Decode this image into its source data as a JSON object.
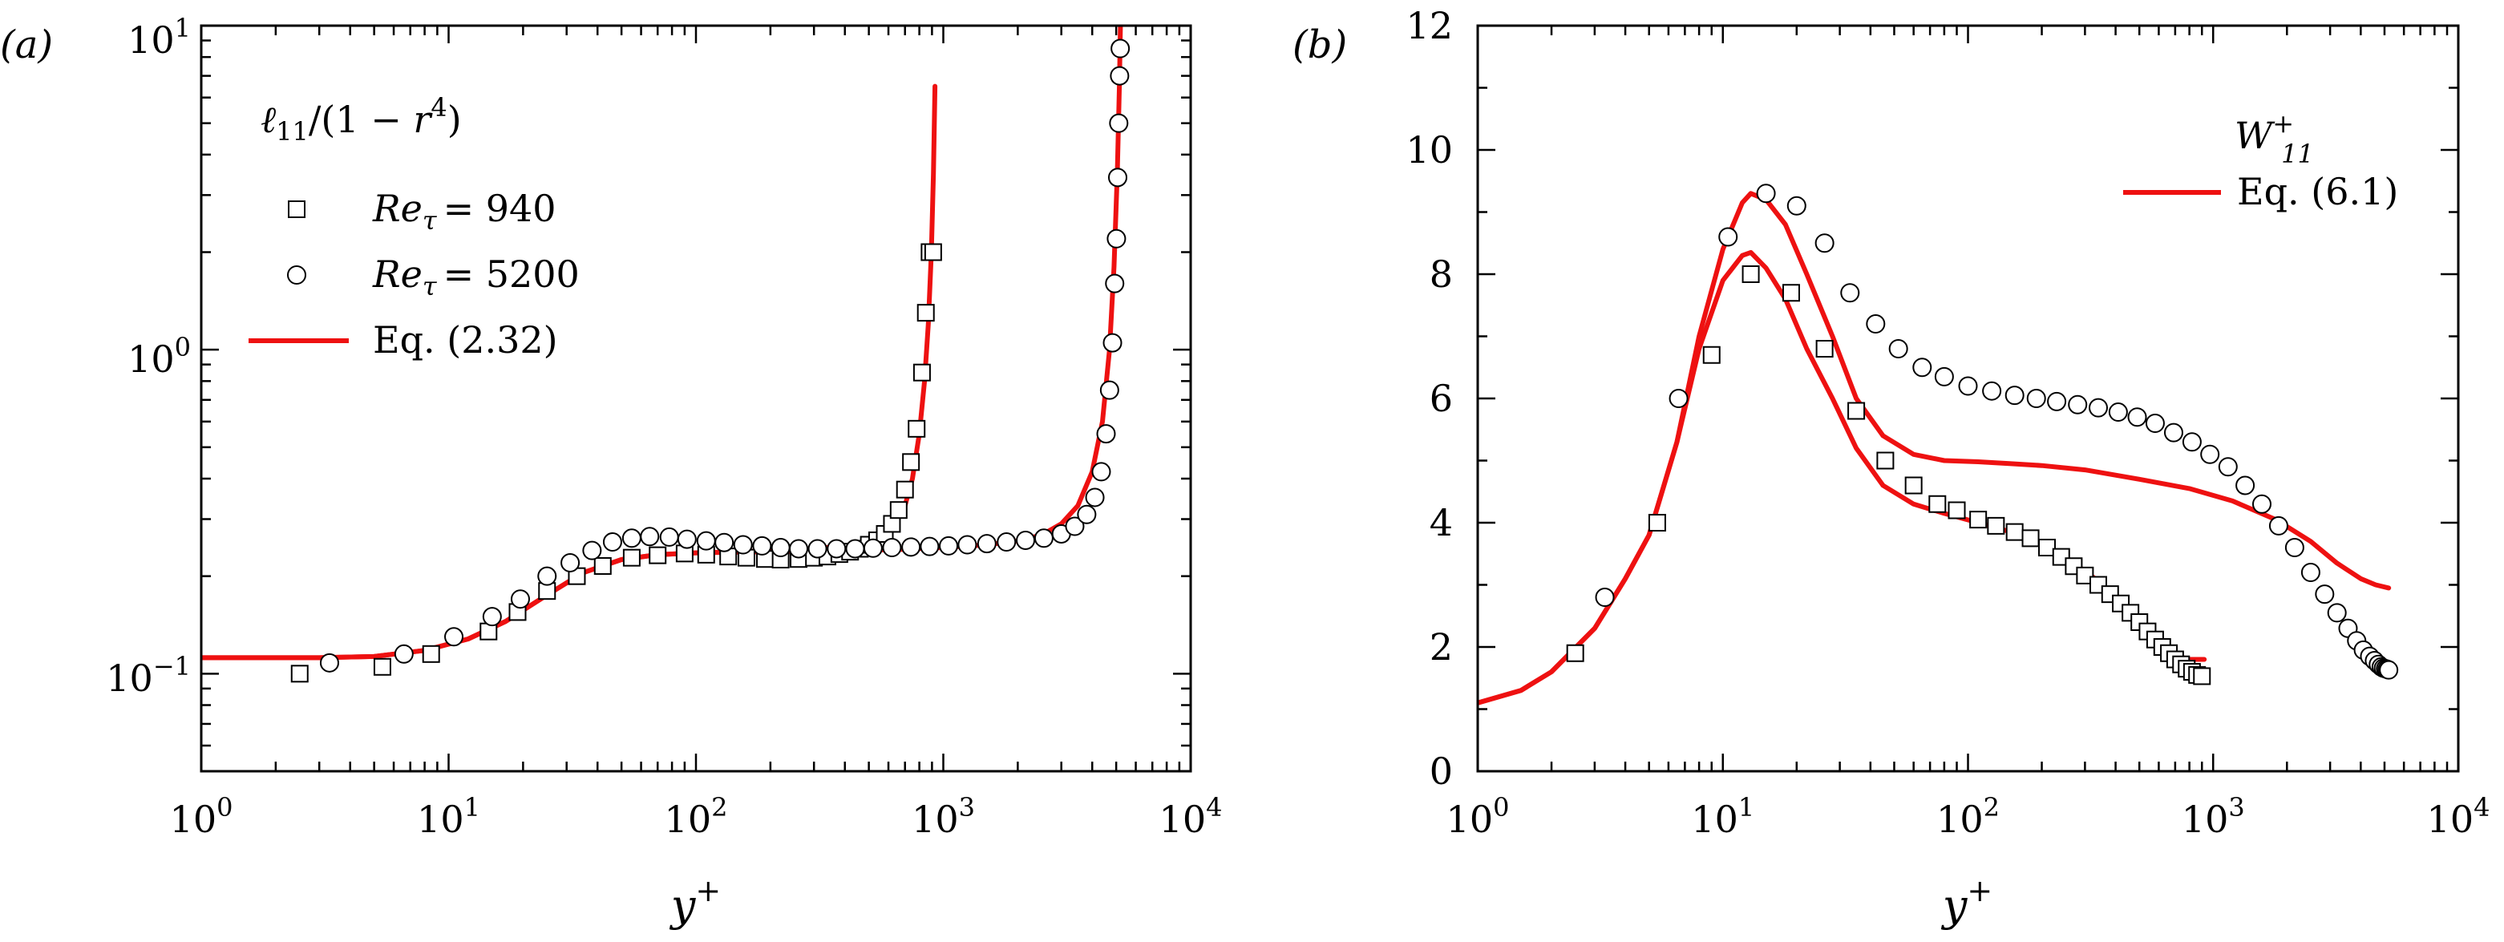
{
  "chart_data": [
    {
      "type": "scatter",
      "panel_label": "(a)",
      "title": "",
      "xlabel": "y+",
      "ylabel": "",
      "xscale": "log",
      "yscale": "log",
      "xlim": [
        1,
        10000
      ],
      "ylim": [
        0.05,
        10
      ],
      "xticks": [
        {
          "base": "10",
          "exp": "0",
          "value": 1
        },
        {
          "base": "10",
          "exp": "1",
          "value": 10
        },
        {
          "base": "10",
          "exp": "2",
          "value": 100
        },
        {
          "base": "10",
          "exp": "3",
          "value": 1000
        },
        {
          "base": "10",
          "exp": "4",
          "value": 10000
        }
      ],
      "yticks": [
        {
          "base": "10",
          "exp": "−1",
          "value": 0.1
        },
        {
          "base": "10",
          "exp": "0",
          "value": 1
        },
        {
          "base": "10",
          "exp": "1",
          "value": 10
        }
      ],
      "legend": {
        "placement": "top-left",
        "heading": "ℓ11/(1 − r4)",
        "heading_ell": "ℓ",
        "heading_sub": "11",
        "heading_mid": "/(1 − ",
        "heading_r": "r",
        "heading_sup": "4",
        "heading_end": ")",
        "entries": [
          {
            "label": "Reτ = 940",
            "re": "Re",
            "sub": "τ",
            "eq": "= 940",
            "marker": "square"
          },
          {
            "label": "Reτ = 5200",
            "re": "Re",
            "sub": "τ",
            "eq": "= 5200",
            "marker": "circle"
          },
          {
            "label": "Eq. (2.32)",
            "marker": "line"
          }
        ]
      },
      "series": [
        {
          "name": "Reτ = 940",
          "marker": "square",
          "x": [
            2.5,
            5.4,
            8.5,
            14.5,
            19,
            25,
            33,
            42,
            55,
            70,
            90,
            110,
            135,
            160,
            190,
            220,
            260,
            300,
            340,
            380,
            420,
            460,
            500,
            540,
            580,
            620,
            660,
            700,
            740,
            780,
            820,
            850,
            880,
            910
          ],
          "y": [
            0.1,
            0.105,
            0.115,
            0.135,
            0.155,
            0.18,
            0.2,
            0.215,
            0.228,
            0.232,
            0.235,
            0.233,
            0.23,
            0.228,
            0.226,
            0.225,
            0.226,
            0.228,
            0.23,
            0.234,
            0.238,
            0.243,
            0.25,
            0.258,
            0.27,
            0.29,
            0.32,
            0.37,
            0.45,
            0.57,
            0.85,
            1.3,
            2.0,
            2.0
          ]
        },
        {
          "name": "Reτ = 5200",
          "marker": "circle",
          "x": [
            3.3,
            6.6,
            10.5,
            15,
            19.5,
            25,
            31,
            38,
            46,
            55,
            65,
            78,
            92,
            110,
            130,
            155,
            185,
            220,
            260,
            310,
            370,
            440,
            520,
            620,
            740,
            880,
            1050,
            1250,
            1500,
            1800,
            2150,
            2550,
            3000,
            3400,
            3800,
            4100,
            4350,
            4550,
            4700,
            4830,
            4930,
            5010,
            5070,
            5120,
            5160,
            5190
          ],
          "y": [
            0.108,
            0.115,
            0.13,
            0.15,
            0.17,
            0.2,
            0.22,
            0.24,
            0.255,
            0.262,
            0.265,
            0.264,
            0.26,
            0.257,
            0.254,
            0.25,
            0.248,
            0.245,
            0.243,
            0.243,
            0.243,
            0.243,
            0.244,
            0.245,
            0.246,
            0.247,
            0.248,
            0.25,
            0.252,
            0.255,
            0.258,
            0.262,
            0.27,
            0.285,
            0.31,
            0.35,
            0.42,
            0.55,
            0.75,
            1.05,
            1.6,
            2.2,
            3.4,
            5.0,
            7.0,
            8.5
          ]
        },
        {
          "name": "Eq. (2.32), Reτ = 940",
          "marker": "line",
          "x": [
            1,
            3,
            5,
            8,
            12,
            17,
            25,
            35,
            50,
            70,
            100,
            150,
            200,
            300,
            400,
            500,
            580,
            640,
            700,
            750,
            800,
            840,
            870,
            895,
            912,
            925
          ],
          "y": [
            0.112,
            0.112,
            0.113,
            0.118,
            0.128,
            0.145,
            0.175,
            0.205,
            0.225,
            0.233,
            0.236,
            0.238,
            0.24,
            0.243,
            0.248,
            0.256,
            0.268,
            0.29,
            0.33,
            0.4,
            0.55,
            0.8,
            1.2,
            2.0,
            3.5,
            6.5
          ]
        },
        {
          "name": "Eq. (2.32), Reτ = 5200",
          "marker": "line",
          "x": [
            1,
            3,
            5,
            8,
            12,
            17,
            25,
            35,
            50,
            70,
            100,
            200,
            400,
            700,
            1000,
            1500,
            2000,
            2500,
            3000,
            3500,
            4000,
            4400,
            4700,
            4900,
            5050,
            5150,
            5200
          ],
          "y": [
            0.112,
            0.112,
            0.113,
            0.118,
            0.128,
            0.145,
            0.175,
            0.205,
            0.225,
            0.233,
            0.236,
            0.238,
            0.24,
            0.242,
            0.245,
            0.25,
            0.257,
            0.268,
            0.29,
            0.33,
            0.42,
            0.6,
            1.0,
            1.8,
            3.5,
            6.5,
            10
          ]
        }
      ]
    },
    {
      "type": "scatter",
      "panel_label": "(b)",
      "title": "",
      "xlabel": "y+",
      "ylabel": "",
      "xscale": "log",
      "yscale": "linear",
      "xlim": [
        1,
        10000
      ],
      "ylim": [
        0,
        12
      ],
      "xticks": [
        {
          "base": "10",
          "exp": "0",
          "value": 1
        },
        {
          "base": "10",
          "exp": "1",
          "value": 10
        },
        {
          "base": "10",
          "exp": "2",
          "value": 100
        },
        {
          "base": "10",
          "exp": "3",
          "value": 1000
        },
        {
          "base": "10",
          "exp": "4",
          "value": 10000
        }
      ],
      "yticks": [
        "0",
        "2",
        "4",
        "6",
        "8",
        "10",
        "12"
      ],
      "legend": {
        "placement": "top-right",
        "heading": "W11+",
        "heading_w": "W",
        "heading_sup": "+",
        "heading_sub": "11",
        "entries": [
          {
            "label": "Eq. (6.1)",
            "marker": "line"
          }
        ]
      },
      "series": [
        {
          "name": "Reτ = 940",
          "marker": "square",
          "x": [
            2.5,
            5.4,
            9,
            13,
            19,
            26,
            35,
            46,
            60,
            75,
            90,
            110,
            130,
            155,
            180,
            210,
            240,
            270,
            300,
            340,
            380,
            420,
            460,
            500,
            540,
            580,
            620,
            660,
            700,
            740,
            780,
            820,
            860,
            900
          ],
          "y": [
            1.9,
            4.0,
            6.7,
            8.0,
            7.7,
            6.8,
            5.8,
            5.0,
            4.6,
            4.3,
            4.2,
            4.05,
            3.95,
            3.85,
            3.75,
            3.6,
            3.45,
            3.3,
            3.15,
            3.0,
            2.85,
            2.7,
            2.55,
            2.4,
            2.25,
            2.12,
            2.0,
            1.9,
            1.8,
            1.72,
            1.65,
            1.6,
            1.55,
            1.53
          ]
        },
        {
          "name": "Reτ = 5200",
          "marker": "circle",
          "x": [
            3.3,
            6.6,
            10.5,
            15,
            20,
            26,
            33,
            42,
            52,
            65,
            80,
            100,
            125,
            155,
            190,
            230,
            280,
            340,
            410,
            490,
            580,
            690,
            820,
            970,
            1150,
            1350,
            1580,
            1850,
            2150,
            2500,
            2850,
            3200,
            3550,
            3850,
            4100,
            4350,
            4550,
            4720,
            4850,
            4950,
            5050,
            5130,
            5200
          ],
          "y": [
            2.8,
            6.0,
            8.6,
            9.3,
            9.1,
            8.5,
            7.7,
            7.2,
            6.8,
            6.5,
            6.35,
            6.2,
            6.12,
            6.05,
            6.0,
            5.95,
            5.9,
            5.85,
            5.78,
            5.7,
            5.6,
            5.45,
            5.3,
            5.1,
            4.9,
            4.6,
            4.3,
            3.95,
            3.6,
            3.2,
            2.85,
            2.55,
            2.3,
            2.1,
            1.95,
            1.85,
            1.78,
            1.72,
            1.68,
            1.66,
            1.65,
            1.64,
            1.63
          ]
        },
        {
          "name": "Eq. (6.1), Reτ = 940",
          "marker": "line",
          "x": [
            1,
            1.5,
            2,
            3,
            4,
            5,
            6.5,
            8,
            10,
            12,
            13,
            15,
            18,
            22,
            28,
            35,
            45,
            60,
            80,
            110,
            150,
            200,
            260,
            330,
            400,
            480,
            560,
            640,
            720,
            800,
            880,
            920
          ],
          "y": [
            1.1,
            1.3,
            1.6,
            2.3,
            3.1,
            3.8,
            5.3,
            6.8,
            7.9,
            8.3,
            8.35,
            8.1,
            7.6,
            6.8,
            6.0,
            5.2,
            4.6,
            4.3,
            4.15,
            4.0,
            3.85,
            3.65,
            3.4,
            3.1,
            2.8,
            2.5,
            2.2,
            2.0,
            1.85,
            1.8,
            1.8,
            1.8
          ]
        },
        {
          "name": "Eq. (6.1), Reτ = 5200",
          "marker": "line",
          "x": [
            1,
            1.5,
            2,
            3,
            4,
            5,
            6.5,
            8,
            10,
            12,
            13,
            15,
            18,
            22,
            28,
            35,
            45,
            60,
            80,
            110,
            150,
            200,
            300,
            500,
            800,
            1200,
            1800,
            2500,
            3200,
            4000,
            4600,
            5200
          ],
          "y": [
            1.1,
            1.3,
            1.6,
            2.3,
            3.1,
            3.8,
            5.3,
            7.0,
            8.4,
            9.15,
            9.3,
            9.2,
            8.8,
            8.0,
            7.0,
            6.0,
            5.4,
            5.1,
            5.0,
            4.98,
            4.95,
            4.92,
            4.85,
            4.7,
            4.55,
            4.35,
            4.05,
            3.7,
            3.35,
            3.1,
            3.0,
            2.95
          ]
        }
      ]
    }
  ]
}
